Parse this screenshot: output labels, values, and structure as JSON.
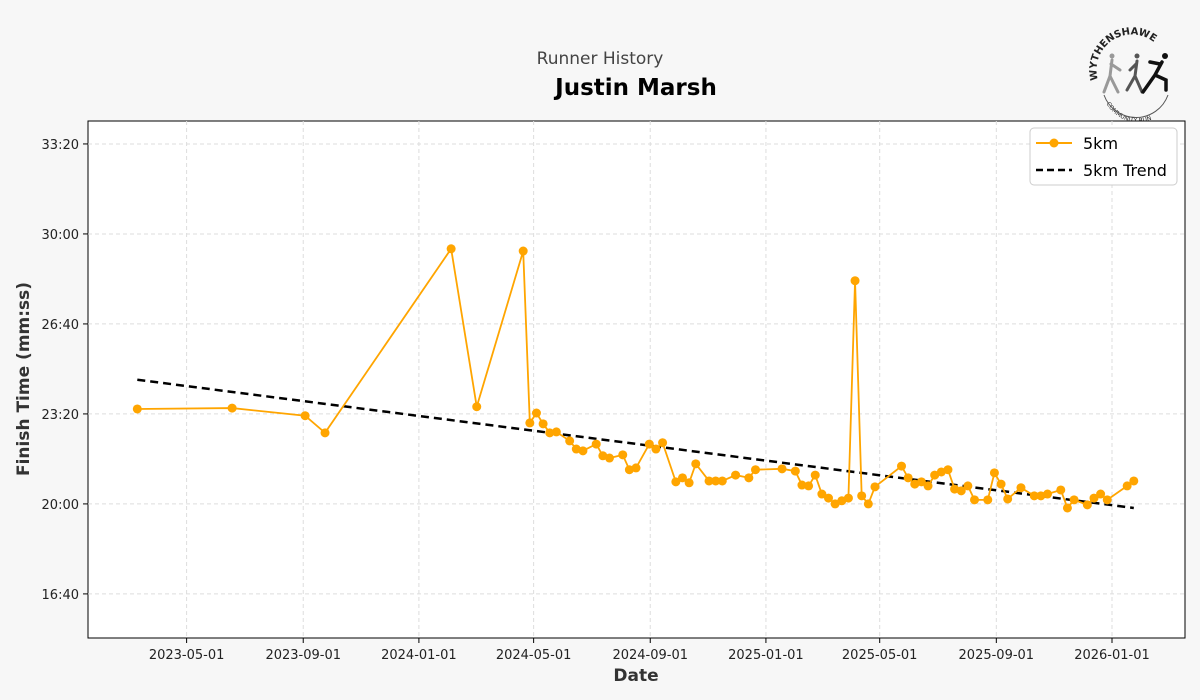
{
  "header": {
    "subtitle": "Runner History",
    "title": "Justin Marsh"
  },
  "logo": {
    "top_text": "WYTHENSHAWE",
    "bottom_text": "COMMUNITY RUN"
  },
  "colors": {
    "series": "#FFA500",
    "trend": "#000000",
    "background": "#f7f7f7",
    "plot_bg": "#ffffff",
    "grid": "#dddddd"
  },
  "chart_data": {
    "type": "line",
    "title": "Justin Marsh",
    "xlabel": "Date",
    "ylabel": "Finish Time (mm:ss)",
    "grid": true,
    "legend_placement": "top-right",
    "xlim": [
      "2023-01-17",
      "2026-03-19"
    ],
    "ylim": [
      "15:02",
      "34:11"
    ],
    "x_ticks": [
      "2023-05-01",
      "2023-09-01",
      "2024-01-01",
      "2024-05-01",
      "2024-09-01",
      "2025-01-01",
      "2025-05-01",
      "2025-09-01",
      "2026-01-01"
    ],
    "y_ticks": [
      "16:40",
      "20:00",
      "23:20",
      "26:40",
      "30:00",
      "33:20"
    ],
    "series": [
      {
        "name": "5km",
        "style": "solid line with circle markers",
        "points": [
          [
            "2023-03-10",
            "23:31"
          ],
          [
            "2023-06-18",
            "23:33"
          ],
          [
            "2023-09-03",
            "23:16"
          ],
          [
            "2023-09-24",
            "22:38"
          ],
          [
            "2024-02-04",
            "29:27"
          ],
          [
            "2024-03-02",
            "23:36"
          ],
          [
            "2024-04-20",
            "29:22"
          ],
          [
            "2024-04-27",
            "23:00"
          ],
          [
            "2024-05-04",
            "23:22"
          ],
          [
            "2024-05-11",
            "22:58"
          ],
          [
            "2024-05-18",
            "22:38"
          ],
          [
            "2024-05-25",
            "22:40"
          ],
          [
            "2024-06-08",
            "22:20"
          ],
          [
            "2024-06-15",
            "22:02"
          ],
          [
            "2024-06-22",
            "21:58"
          ],
          [
            "2024-07-06",
            "22:13"
          ],
          [
            "2024-07-13",
            "21:47"
          ],
          [
            "2024-07-20",
            "21:42"
          ],
          [
            "2024-08-03",
            "21:49"
          ],
          [
            "2024-08-10",
            "21:16"
          ],
          [
            "2024-08-17",
            "21:20"
          ],
          [
            "2024-08-31",
            "22:13"
          ],
          [
            "2024-09-07",
            "22:02"
          ],
          [
            "2024-09-14",
            "22:16"
          ],
          [
            "2024-09-28",
            "20:49"
          ],
          [
            "2024-10-05",
            "20:58"
          ],
          [
            "2024-10-12",
            "20:47"
          ],
          [
            "2024-10-19",
            "21:29"
          ],
          [
            "2024-11-02",
            "20:51"
          ],
          [
            "2024-11-09",
            "20:51"
          ],
          [
            "2024-11-16",
            "20:51"
          ],
          [
            "2024-11-30",
            "21:04"
          ],
          [
            "2024-12-14",
            "20:58"
          ],
          [
            "2024-12-21",
            "21:16"
          ],
          [
            "2025-01-18",
            "21:18"
          ],
          [
            "2025-02-01",
            "21:13"
          ],
          [
            "2025-02-08",
            "20:42"
          ],
          [
            "2025-02-15",
            "20:40"
          ],
          [
            "2025-02-22",
            "21:04"
          ],
          [
            "2025-03-01",
            "20:22"
          ],
          [
            "2025-03-08",
            "20:13"
          ],
          [
            "2025-03-15",
            "20:00"
          ],
          [
            "2025-03-22",
            "20:07"
          ],
          [
            "2025-03-29",
            "20:13"
          ],
          [
            "2025-04-05",
            "28:16"
          ],
          [
            "2025-04-12",
            "20:18"
          ],
          [
            "2025-04-19",
            "20:00"
          ],
          [
            "2025-04-26",
            "20:38"
          ],
          [
            "2025-05-24",
            "21:24"
          ],
          [
            "2025-05-31",
            "20:58"
          ],
          [
            "2025-06-07",
            "20:44"
          ],
          [
            "2025-06-14",
            "20:49"
          ],
          [
            "2025-06-21",
            "20:40"
          ],
          [
            "2025-06-28",
            "21:04"
          ],
          [
            "2025-07-05",
            "21:11"
          ],
          [
            "2025-07-12",
            "21:16"
          ],
          [
            "2025-07-19",
            "20:33"
          ],
          [
            "2025-07-26",
            "20:29"
          ],
          [
            "2025-08-02",
            "20:40"
          ],
          [
            "2025-08-09",
            "20:09"
          ],
          [
            "2025-08-23",
            "20:09"
          ],
          [
            "2025-08-30",
            "21:09"
          ],
          [
            "2025-09-06",
            "20:44"
          ],
          [
            "2025-09-13",
            "20:11"
          ],
          [
            "2025-09-27",
            "20:36"
          ],
          [
            "2025-10-11",
            "20:18"
          ],
          [
            "2025-10-18",
            "20:18"
          ],
          [
            "2025-10-25",
            "20:22"
          ],
          [
            "2025-11-08",
            "20:31"
          ],
          [
            "2025-11-15",
            "19:51"
          ],
          [
            "2025-11-22",
            "20:09"
          ],
          [
            "2025-12-06",
            "19:58"
          ],
          [
            "2025-12-13",
            "20:13"
          ],
          [
            "2025-12-20",
            "20:22"
          ],
          [
            "2025-12-27",
            "20:09"
          ],
          [
            "2026-01-17",
            "20:40"
          ],
          [
            "2026-01-24",
            "20:51"
          ]
        ]
      },
      {
        "name": "5km Trend",
        "style": "dashed line",
        "points": [
          [
            "2023-03-10",
            "24:36"
          ],
          [
            "2026-01-24",
            "19:51"
          ]
        ]
      }
    ]
  }
}
